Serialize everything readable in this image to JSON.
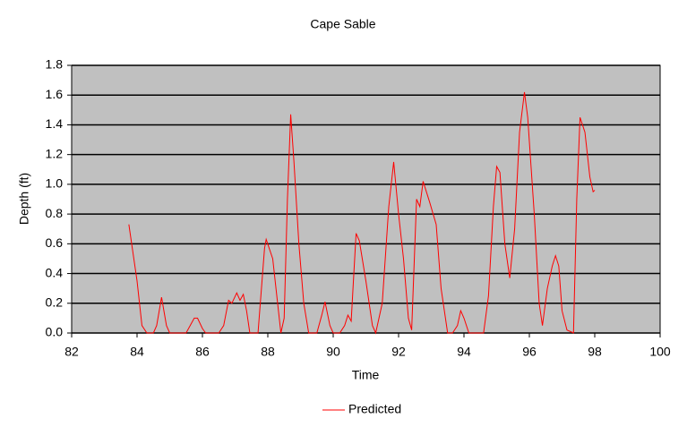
{
  "chart_data": {
    "type": "line",
    "title": "Cape Sable",
    "xlabel": "Time",
    "ylabel": "Depth (ft)",
    "x": [
      83.75,
      84.0,
      84.15,
      84.3,
      84.5,
      84.6,
      84.75,
      84.9,
      85.0,
      85.5,
      85.75,
      85.85,
      86.0,
      86.1,
      86.5,
      86.65,
      86.8,
      86.9,
      87.05,
      87.15,
      87.25,
      87.35,
      87.45,
      87.7,
      87.9,
      87.95,
      88.15,
      88.3,
      88.4,
      88.5,
      88.6,
      88.7,
      88.8,
      88.95,
      89.1,
      89.25,
      89.5,
      89.65,
      89.75,
      89.9,
      90.0,
      90.2,
      90.35,
      90.45,
      90.55,
      90.7,
      90.8,
      91.0,
      91.2,
      91.3,
      91.5,
      91.7,
      91.85,
      92.0,
      92.15,
      92.3,
      92.4,
      92.55,
      92.65,
      92.75,
      92.95,
      93.15,
      93.3,
      93.5,
      93.65,
      93.8,
      93.9,
      94.0,
      94.15,
      94.6,
      94.75,
      94.9,
      95.0,
      95.1,
      95.25,
      95.4,
      95.55,
      95.7,
      95.85,
      95.95,
      96.15,
      96.3,
      96.4,
      96.55,
      96.7,
      96.8,
      96.9,
      97.0,
      97.15,
      97.35,
      97.45,
      97.55,
      97.7,
      97.85,
      97.95,
      98.0
    ],
    "series": [
      {
        "name": "Predicted",
        "color": "#ff0000",
        "values": [
          0.73,
          0.35,
          0.05,
          0,
          0,
          0.05,
          0.24,
          0.05,
          0,
          0,
          0.1,
          0.1,
          0.03,
          0,
          0,
          0.05,
          0.22,
          0.2,
          0.27,
          0.22,
          0.26,
          0.15,
          0,
          0,
          0.57,
          0.63,
          0.5,
          0.2,
          0,
          0.1,
          0.9,
          1.47,
          1.15,
          0.6,
          0.2,
          0,
          0,
          0.12,
          0.21,
          0.05,
          0,
          0,
          0.05,
          0.12,
          0.08,
          0.67,
          0.62,
          0.35,
          0.05,
          0,
          0.2,
          0.85,
          1.15,
          0.8,
          0.5,
          0.1,
          0.02,
          0.9,
          0.85,
          1.02,
          0.88,
          0.73,
          0.3,
          0,
          0,
          0.05,
          0.15,
          0.1,
          0,
          0,
          0.25,
          0.85,
          1.12,
          1.08,
          0.6,
          0.37,
          0.7,
          1.35,
          1.62,
          1.45,
          0.8,
          0.2,
          0.05,
          0.3,
          0.45,
          0.52,
          0.45,
          0.15,
          0.02,
          0,
          0.9,
          1.45,
          1.35,
          1.05,
          0.95,
          0.96
        ]
      }
    ],
    "xlim": [
      82,
      100
    ],
    "xticks": [
      82,
      84,
      86,
      88,
      90,
      92,
      94,
      96,
      98,
      100
    ],
    "ylim": [
      0,
      1.8
    ],
    "yticks": [
      {
        "value": 0,
        "label": "0.0"
      },
      0.2,
      0.4,
      0.6,
      0.8,
      {
        "value": 1,
        "label": "1.0"
      },
      1.2,
      1.4,
      1.6,
      1.8
    ],
    "grid": true,
    "background": "#c0c0c0",
    "legend": "bottom"
  }
}
